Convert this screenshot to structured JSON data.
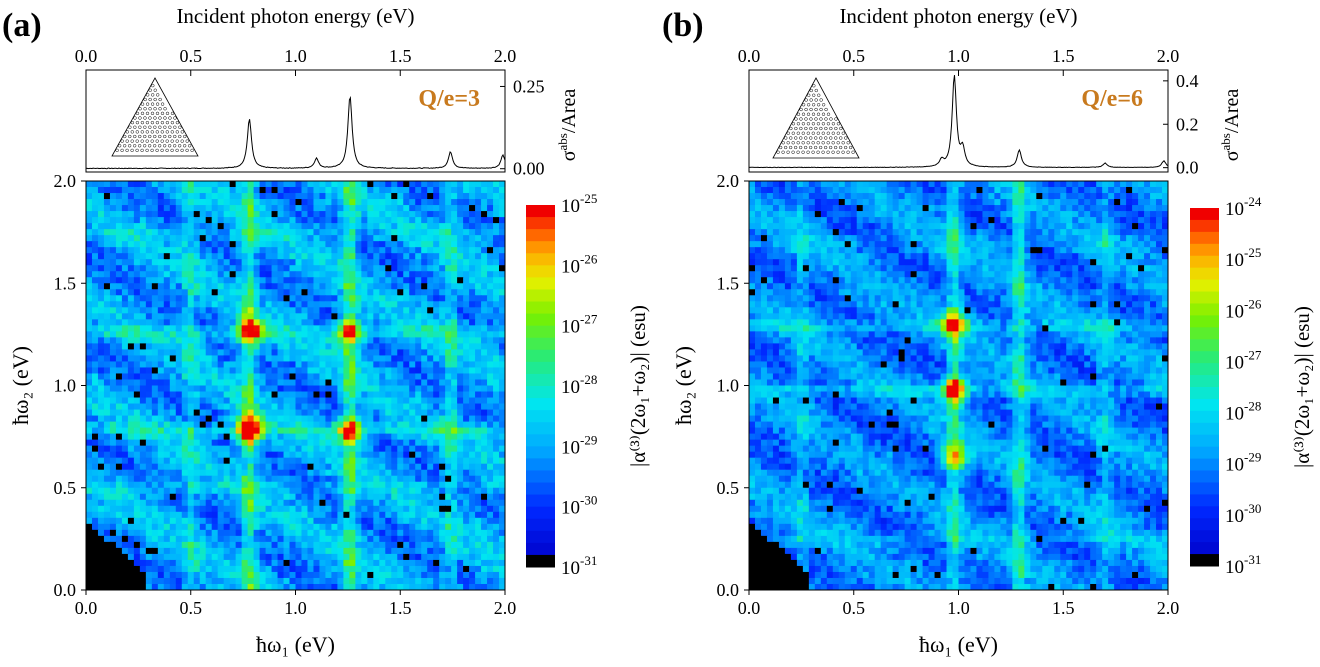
{
  "chart_data": [
    {
      "panel_label": "(a)",
      "type": "heatmap",
      "top_axis_label": "Incident photon energy (eV)",
      "top_axis_ticks": [
        "0.0",
        "0.5",
        "1.0",
        "1.5",
        "2.0"
      ],
      "top_xlim": [
        0,
        2
      ],
      "inset_annotation": "Q/e=3",
      "absorption_spectrum": {
        "type": "line",
        "ylabel_main": "σ",
        "ylabel_sup": "abs",
        "ylabel_rest": "/Area",
        "y_ticks": [
          "0.25",
          "0.00"
        ],
        "ylim": [
          -0.01,
          0.3
        ],
        "baseline": 0.0,
        "peaks": [
          {
            "x": 0.78,
            "y": 0.15
          },
          {
            "x": 1.1,
            "y": 0.03
          },
          {
            "x": 1.26,
            "y": 0.22
          },
          {
            "x": 1.74,
            "y": 0.05
          },
          {
            "x": 1.99,
            "y": 0.04
          }
        ]
      },
      "xlabel": "ħω₁ (eV)",
      "ylabel": "ħω₂ (eV)",
      "x_ticks": [
        "0.0",
        "0.5",
        "1.0",
        "1.5",
        "2.0"
      ],
      "y_ticks": [
        "2.0",
        "1.5",
        "1.0",
        "0.5",
        "0.0"
      ],
      "xlim": [
        0,
        2
      ],
      "ylim": [
        0,
        2
      ],
      "resonances": [
        0.78,
        1.26,
        0.5,
        1.74
      ],
      "hotspots": [
        {
          "x": 0.78,
          "y": 0.78,
          "v": 5.0
        },
        {
          "x": 0.78,
          "y": 1.26,
          "v": 3.5
        },
        {
          "x": 1.26,
          "y": 1.26,
          "v": 3.5
        },
        {
          "x": 1.26,
          "y": 0.78,
          "v": 3.4
        }
      ],
      "colorbar": {
        "label": "|α⁽³⁾(2ω₁+ω₂)| (esu)",
        "ticks": [
          "10",
          "10",
          "10",
          "10",
          "10",
          "10",
          "10"
        ],
        "exponents": [
          "-25",
          "-26",
          "-27",
          "-28",
          "-29",
          "-30",
          "-31"
        ],
        "min_exp": -31,
        "max_exp": -25
      },
      "colors": {
        "low": "#000000",
        "mid": "#00c8ff",
        "high": "#ff0000",
        "annotation": "#c87a1e"
      }
    },
    {
      "panel_label": "(b)",
      "type": "heatmap",
      "top_axis_label": "Incident photon energy (eV)",
      "top_axis_ticks": [
        "0.0",
        "0.5",
        "1.0",
        "1.5",
        "2.0"
      ],
      "top_xlim": [
        0,
        2
      ],
      "inset_annotation": "Q/e=6",
      "absorption_spectrum": {
        "type": "line",
        "ylabel_main": "σ",
        "ylabel_sup": "abs",
        "ylabel_rest": "/Area",
        "y_ticks": [
          "0.4",
          "0.2",
          "0.0"
        ],
        "ylim": [
          -0.02,
          0.45
        ],
        "baseline": 0.0,
        "peaks": [
          {
            "x": 0.92,
            "y": 0.03
          },
          {
            "x": 0.98,
            "y": 0.42
          },
          {
            "x": 1.02,
            "y": 0.08
          },
          {
            "x": 1.29,
            "y": 0.08
          },
          {
            "x": 1.7,
            "y": 0.02
          },
          {
            "x": 1.98,
            "y": 0.03
          }
        ]
      },
      "xlabel": "ħω₁ (eV)",
      "ylabel": "ħω₂ (eV)",
      "x_ticks": [
        "0.0",
        "0.5",
        "1.0",
        "1.5",
        "2.0"
      ],
      "y_ticks": [
        "2.0",
        "1.5",
        "1.0",
        "0.5",
        "0.0"
      ],
      "xlim": [
        0,
        2
      ],
      "ylim": [
        0,
        2
      ],
      "resonances": [
        0.98,
        1.29,
        0.25,
        1.7
      ],
      "hotspots": [
        {
          "x": 0.98,
          "y": 0.98,
          "v": 5.0
        },
        {
          "x": 0.98,
          "y": 1.3,
          "v": 3.6
        },
        {
          "x": 0.98,
          "y": 0.65,
          "v": 3.5
        }
      ],
      "colorbar": {
        "label": "|α⁽³⁾(2ω₁+ω₂)| (esu)",
        "ticks": [
          "10",
          "10",
          "10",
          "10",
          "10",
          "10",
          "10",
          "10"
        ],
        "exponents": [
          "-24",
          "-25",
          "-26",
          "-27",
          "-28",
          "-29",
          "-30",
          "-31"
        ],
        "min_exp": -31,
        "max_exp": -24
      },
      "colors": {
        "low": "#000000",
        "mid": "#00c8ff",
        "high": "#ff0000",
        "annotation": "#c87a1e"
      }
    }
  ]
}
